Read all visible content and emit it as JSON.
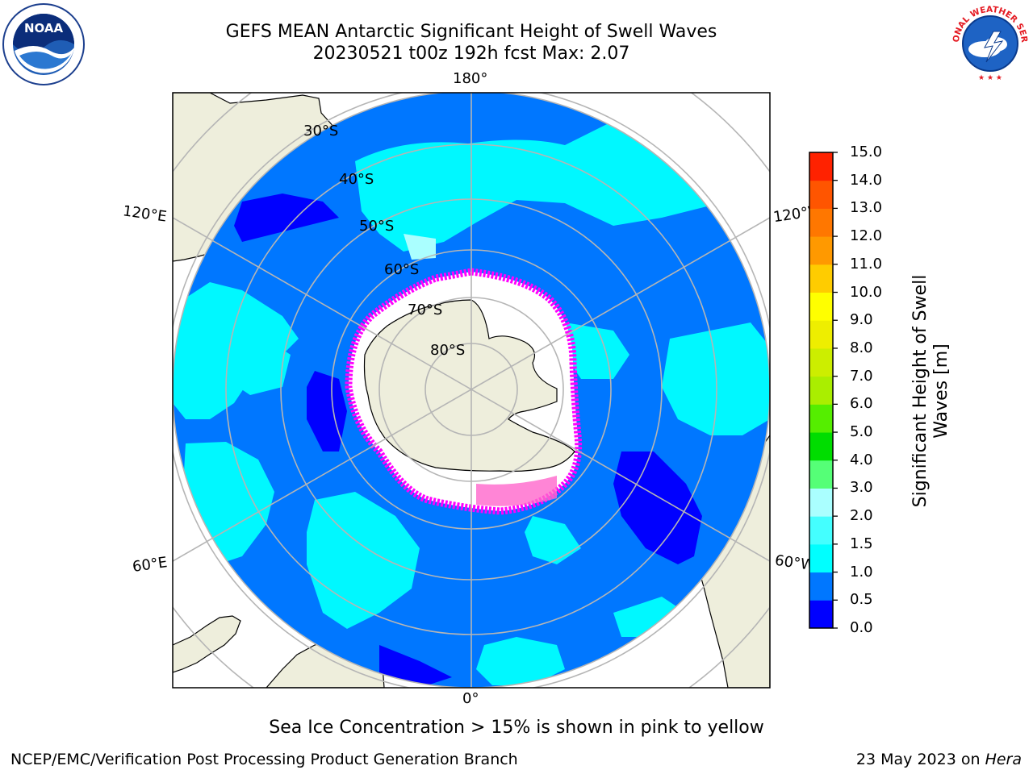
{
  "title": {
    "line1": "GEFS MEAN Antarctic Significant Height of Swell Waves",
    "line2": "20230521 t00z 192h fcst   Max: 2.07"
  },
  "logos": {
    "left": {
      "icon": "noaa-logo",
      "text": "NOAA",
      "ring_text": "NATIONAL OCEANIC AND ATMOSPHERIC ADMINISTRATION · U.S. DEPARTMENT OF COMMERCE"
    },
    "right": {
      "icon": "nws-logo",
      "ring_text": "NATIONAL WEATHER SERVICE"
    }
  },
  "map": {
    "projection": "south-polar-stereographic",
    "longitude_labels": {
      "top": "180°",
      "bottom": "0°",
      "upper_left": "120°E",
      "upper_right": "120°W",
      "lower_left": "60°E",
      "lower_right": "60°W"
    },
    "latitude_labels": [
      "30°S",
      "40°S",
      "50°S",
      "60°S",
      "70°S",
      "80°S"
    ],
    "colors": {
      "land": "#eeeedc",
      "ocean_low": "#0000ff",
      "ocean_mid": "#0077ff",
      "ocean_high": "#00ffff",
      "sea_ice": "#ff00ff",
      "grid": "#b5b5b5"
    }
  },
  "colorbar": {
    "label": "Significant Height of Swell Waves [m]",
    "ticks": [
      "15.0",
      "14.0",
      "13.0",
      "12.0",
      "11.0",
      "10.0",
      "9.0",
      "8.0",
      "7.0",
      "6.0",
      "5.0",
      "4.0",
      "3.0",
      "2.0",
      "1.5",
      "1.0",
      "0.5",
      "0.0"
    ],
    "colors": [
      "#0000ff",
      "#0077ff",
      "#00ffff",
      "#44ffff",
      "#aaffff",
      "#55ff77",
      "#00dd00",
      "#55ee00",
      "#aaee00",
      "#ccee00",
      "#eeee00",
      "#ffff00",
      "#ffcc00",
      "#ff9900",
      "#ff7700",
      "#ff5500",
      "#ff2200"
    ]
  },
  "caption": "Sea Ice Concentration > 15% is shown in pink to yellow",
  "footer": {
    "left": "NCEP/EMC/Verification Post Processing Product Generation Branch",
    "right_date": "23 May 2023 on ",
    "right_host": "Hera"
  }
}
